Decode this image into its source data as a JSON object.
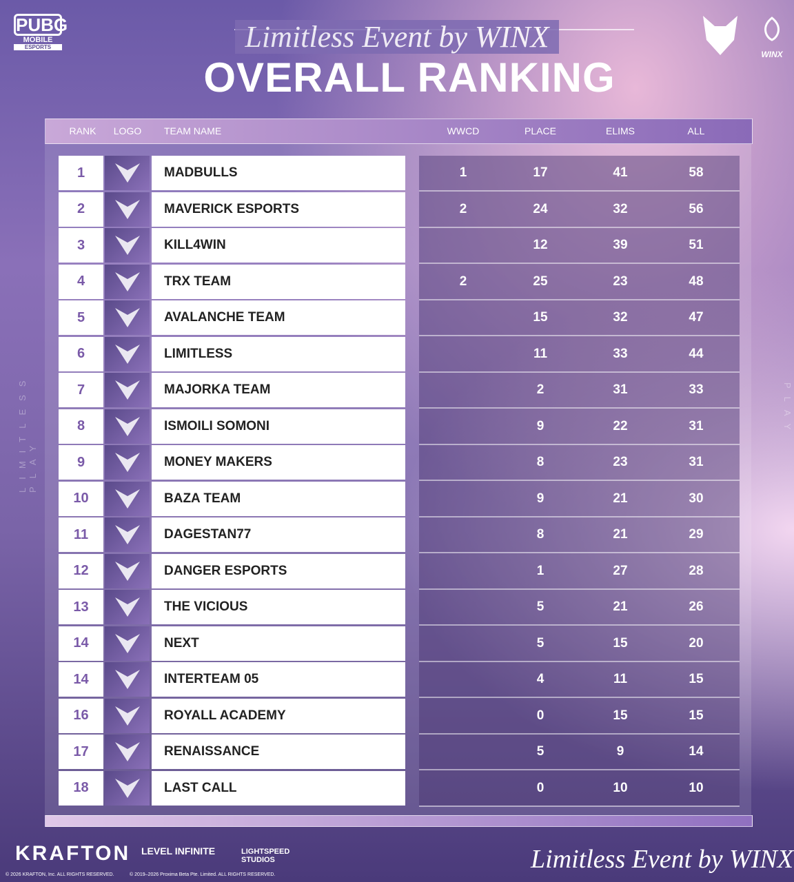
{
  "header": {
    "brand_top": "PUBG",
    "brand_mid": "MOBILE",
    "brand_bottom": "ESPORTS",
    "subtitle": "Limitless Event by WINX",
    "title": "OVERALL RANKING",
    "partner": "WINX",
    "side_text": "LIMITLESS PLAY"
  },
  "table": {
    "columns": {
      "rank": "RANK",
      "logo": "LOGO",
      "team": "TEAM NAME",
      "wwcd": "WWCD",
      "place": "PLACE",
      "elims": "ELIMS",
      "all": "ALL"
    },
    "rows": [
      {
        "rank": "1",
        "team": "MADBULLS",
        "wwcd": "1",
        "place": "17",
        "elims": "41",
        "all": "58"
      },
      {
        "rank": "2",
        "team": "MAVERICK ESPORTS",
        "wwcd": "2",
        "place": "24",
        "elims": "32",
        "all": "56"
      },
      {
        "rank": "3",
        "team": "KILL4WIN",
        "place": "12",
        "elims": "39",
        "all": "51"
      },
      {
        "rank": "4",
        "team": "TRX TEAM",
        "wwcd": "2",
        "place": "25",
        "elims": "23",
        "all": "48"
      },
      {
        "rank": "5",
        "team": "AVALANCHE TEAM",
        "place": "15",
        "elims": "32",
        "all": "47"
      },
      {
        "rank": "6",
        "team": "LIMITLESS",
        "place": "11",
        "elims": "33",
        "all": "44"
      },
      {
        "rank": "7",
        "team": "MAJORKA TEAM",
        "place": "2",
        "elims": "31",
        "all": "33"
      },
      {
        "rank": "8",
        "team": "ISMOILI SOMONI",
        "place": "9",
        "elims": "22",
        "all": "31"
      },
      {
        "rank": "9",
        "team": "MONEY MAKERS",
        "place": "8",
        "elims": "23",
        "all": "31"
      },
      {
        "rank": "10",
        "team": "BAZA TEAM",
        "place": "9",
        "elims": "21",
        "all": "30"
      },
      {
        "rank": "11",
        "team": "DAGESTAN77",
        "place": "8",
        "elims": "21",
        "all": "29"
      },
      {
        "rank": "12",
        "team": "DANGER ESPORTS",
        "place": "1",
        "elims": "27",
        "all": "28"
      },
      {
        "rank": "13",
        "team": "THE VICIOUS",
        "place": "5",
        "elims": "21",
        "all": "26"
      },
      {
        "rank": "14",
        "team": "NEXT",
        "place": "5",
        "elims": "15",
        "all": "20"
      },
      {
        "rank": "14",
        "team": "INTERTEAM 05",
        "place": "4",
        "elims": "11",
        "all": "15"
      },
      {
        "rank": "16",
        "team": "ROYALL ACADEMY",
        "place": "0",
        "elims": "15",
        "all": "15"
      },
      {
        "rank": "17",
        "team": "RENAISSANCE",
        "place": "5",
        "elims": "9",
        "all": "14"
      },
      {
        "rank": "18",
        "team": "LAST CALL",
        "place": "0",
        "elims": "10",
        "all": "10"
      }
    ]
  },
  "footer": {
    "krafton": "KRAFTON",
    "level_infinite": "LEVEL INFINITE",
    "lightspeed": "LIGHTSPEED STUDIOS",
    "copyright_1": "© 2026 KRAFTON, Inc. ALL RIGHTS RESERVED.",
    "copyright_2": "© 2019–2026 Proxima Beta Pte. Limited. ALL RIGHTS RESERVED.",
    "tagline": "Limitless Event by WINX"
  }
}
